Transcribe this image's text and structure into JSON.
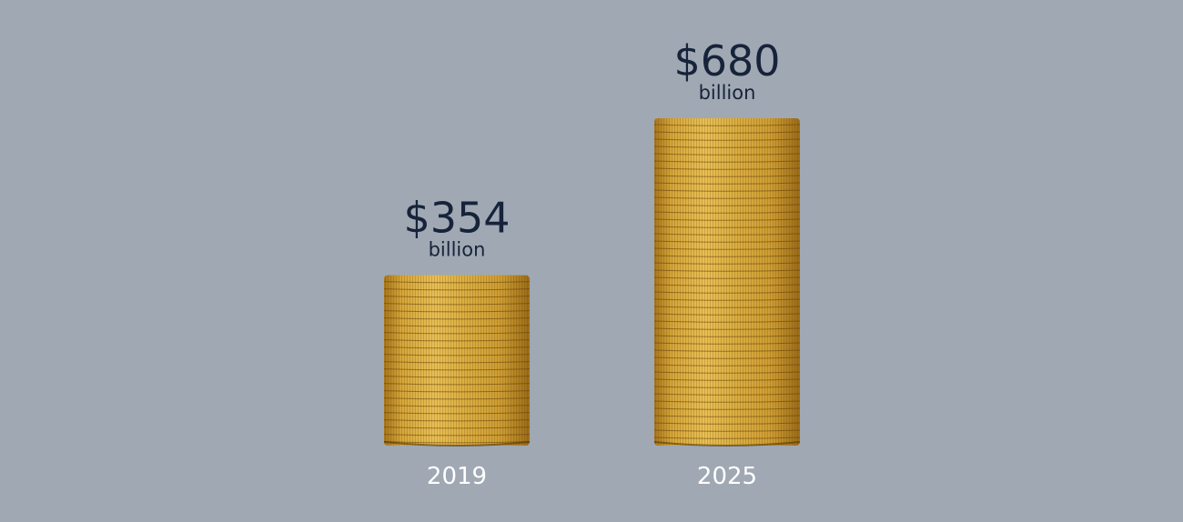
{
  "chart_data": {
    "type": "bar",
    "categories": [
      "2019",
      "2025"
    ],
    "values": [
      354,
      680
    ],
    "data_labels": [
      "$354",
      "$680"
    ],
    "unit_label": "billion",
    "ylim": [
      0,
      680
    ],
    "grid": false,
    "legend": "none",
    "colors": {
      "background": "#a0a8b3",
      "coin_light": "#e6b94a",
      "coin_mid": "#c99a2e",
      "coin_dark": "#8f6614",
      "value_text": "#16233a",
      "category_text": "#ffffff"
    }
  }
}
